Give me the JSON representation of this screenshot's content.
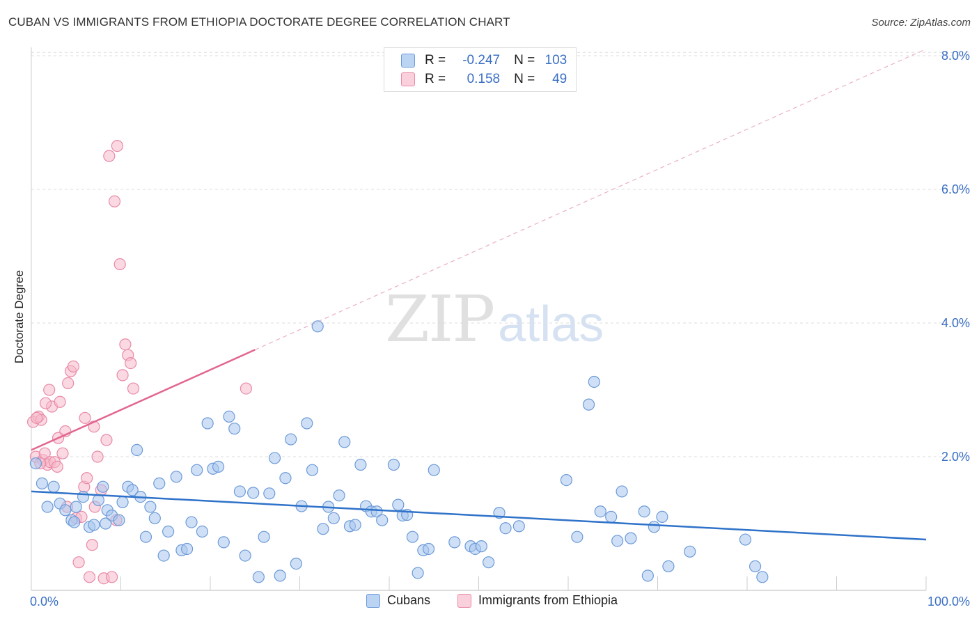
{
  "header": {
    "title": "CUBAN VS IMMIGRANTS FROM ETHIOPIA DOCTORATE DEGREE CORRELATION CHART",
    "source": "Source: ZipAtlas.com"
  },
  "watermark": {
    "part1": "ZIP",
    "part2": "atlas"
  },
  "legend_top": {
    "rows": [
      {
        "r_label": "R =",
        "r_value": "-0.247",
        "n_label": "N =",
        "n_value": "103"
      },
      {
        "r_label": "R =",
        "r_value": "0.158",
        "n_label": "N =",
        "n_value": "49"
      }
    ]
  },
  "legend_bottom": {
    "items": [
      "Cubans",
      "Immigrants from Ethiopia"
    ]
  },
  "colors": {
    "blue_fill": "#a8c6ee",
    "blue_stroke": "#6c9ad8",
    "blue_line": "#2f72c9",
    "pink_fill": "#f6b9cb",
    "pink_stroke": "#e98aa8",
    "pink_line": "#e2668f",
    "axis_label": "#3a6fc4",
    "grid": "#dddddd"
  },
  "chart_data": {
    "type": "scatter",
    "title": "CUBAN VS IMMIGRANTS FROM ETHIOPIA DOCTORATE DEGREE CORRELATION CHART",
    "xlabel": "",
    "ylabel": "Doctorate Degree",
    "xlim": [
      0,
      100
    ],
    "ylim": [
      0,
      8.0
    ],
    "x_tick_labels": [
      "0.0%",
      "100.0%"
    ],
    "y_ticks": [
      2.0,
      4.0,
      6.0,
      8.0
    ],
    "y_tick_labels": [
      "2.0%",
      "4.0%",
      "6.0%",
      "8.0%"
    ],
    "grid": "horizontal dashed",
    "legend_placement": "bottom-center",
    "series": [
      {
        "name": "Cubans",
        "color": "#a8c6ee",
        "trend": {
          "x": [
            0,
            100
          ],
          "y": [
            1.48,
            0.76
          ]
        },
        "points": [
          [
            0.5,
            1.9
          ],
          [
            1.2,
            1.6
          ],
          [
            1.8,
            1.25
          ],
          [
            2.5,
            1.55
          ],
          [
            3.2,
            1.3
          ],
          [
            3.8,
            1.2
          ],
          [
            4.5,
            1.05
          ],
          [
            5.0,
            1.25
          ],
          [
            5.8,
            1.4
          ],
          [
            6.5,
            0.95
          ],
          [
            7.0,
            0.98
          ],
          [
            7.5,
            1.35
          ],
          [
            8.0,
            1.55
          ],
          [
            8.5,
            1.2
          ],
          [
            9.0,
            1.12
          ],
          [
            9.8,
            1.05
          ],
          [
            10.2,
            1.32
          ],
          [
            10.8,
            1.55
          ],
          [
            11.3,
            1.5
          ],
          [
            11.8,
            2.1
          ],
          [
            12.2,
            1.4
          ],
          [
            12.8,
            0.8
          ],
          [
            13.3,
            1.25
          ],
          [
            13.8,
            1.08
          ],
          [
            14.3,
            1.6
          ],
          [
            14.8,
            0.52
          ],
          [
            15.3,
            0.88
          ],
          [
            16.2,
            1.7
          ],
          [
            16.8,
            0.6
          ],
          [
            17.4,
            0.62
          ],
          [
            17.9,
            1.02
          ],
          [
            18.5,
            1.8
          ],
          [
            19.1,
            0.88
          ],
          [
            19.7,
            2.5
          ],
          [
            20.3,
            1.82
          ],
          [
            20.9,
            1.85
          ],
          [
            21.5,
            0.72
          ],
          [
            22.1,
            2.6
          ],
          [
            22.7,
            2.42
          ],
          [
            23.3,
            1.48
          ],
          [
            23.9,
            0.52
          ],
          [
            24.8,
            1.46
          ],
          [
            25.4,
            0.2
          ],
          [
            26.0,
            0.8
          ],
          [
            26.6,
            1.45
          ],
          [
            27.2,
            1.98
          ],
          [
            27.8,
            0.22
          ],
          [
            28.4,
            1.68
          ],
          [
            29.0,
            2.26
          ],
          [
            29.6,
            0.4
          ],
          [
            30.2,
            1.26
          ],
          [
            30.8,
            2.5
          ],
          [
            31.4,
            1.8
          ],
          [
            32.0,
            3.95
          ],
          [
            32.6,
            0.92
          ],
          [
            33.2,
            1.25
          ],
          [
            33.8,
            1.08
          ],
          [
            34.4,
            1.42
          ],
          [
            35.0,
            2.22
          ],
          [
            35.6,
            0.96
          ],
          [
            36.2,
            0.98
          ],
          [
            36.8,
            1.88
          ],
          [
            37.4,
            1.26
          ],
          [
            38.0,
            1.18
          ],
          [
            38.6,
            1.18
          ],
          [
            39.2,
            1.05
          ],
          [
            40.5,
            1.88
          ],
          [
            41.0,
            1.28
          ],
          [
            41.5,
            1.12
          ],
          [
            42.0,
            1.13
          ],
          [
            42.6,
            0.8
          ],
          [
            43.2,
            0.26
          ],
          [
            43.8,
            0.6
          ],
          [
            44.4,
            0.62
          ],
          [
            45.0,
            1.8
          ],
          [
            47.3,
            0.72
          ],
          [
            49.1,
            0.66
          ],
          [
            49.6,
            0.62
          ],
          [
            50.3,
            0.66
          ],
          [
            51.1,
            0.42
          ],
          [
            52.3,
            1.16
          ],
          [
            53.0,
            0.93
          ],
          [
            54.5,
            0.96
          ],
          [
            59.8,
            1.65
          ],
          [
            61.0,
            0.8
          ],
          [
            62.3,
            2.78
          ],
          [
            62.9,
            3.12
          ],
          [
            63.6,
            1.18
          ],
          [
            64.8,
            1.1
          ],
          [
            65.5,
            0.74
          ],
          [
            66.0,
            1.48
          ],
          [
            67.0,
            0.78
          ],
          [
            68.5,
            1.18
          ],
          [
            68.9,
            0.22
          ],
          [
            69.6,
            0.95
          ],
          [
            70.5,
            1.1
          ],
          [
            71.2,
            0.36
          ],
          [
            73.6,
            0.58
          ],
          [
            79.8,
            0.76
          ],
          [
            80.9,
            0.36
          ],
          [
            81.7,
            0.2
          ],
          [
            4.8,
            1.02
          ],
          [
            8.3,
            1.0
          ]
        ]
      },
      {
        "name": "Immigrants from Ethiopia",
        "color": "#f6b9cb",
        "trend": {
          "x": [
            0,
            25
          ],
          "y": [
            2.1,
            3.6
          ]
        },
        "trend_extension": {
          "x": [
            25,
            100
          ],
          "y": [
            3.6,
            8.1
          ]
        },
        "points": [
          [
            0.2,
            2.52
          ],
          [
            0.5,
            2.0
          ],
          [
            0.8,
            2.6
          ],
          [
            1.1,
            2.55
          ],
          [
            1.3,
            1.95
          ],
          [
            1.5,
            2.05
          ],
          [
            1.8,
            1.88
          ],
          [
            2.1,
            1.92
          ],
          [
            2.3,
            2.75
          ],
          [
            2.6,
            1.92
          ],
          [
            2.9,
            1.85
          ],
          [
            3.2,
            2.82
          ],
          [
            3.5,
            2.05
          ],
          [
            3.8,
            2.38
          ],
          [
            4.1,
            3.1
          ],
          [
            4.4,
            3.28
          ],
          [
            4.7,
            3.35
          ],
          [
            5.0,
            1.08
          ],
          [
            5.3,
            0.42
          ],
          [
            5.6,
            1.1
          ],
          [
            5.9,
            1.55
          ],
          [
            6.2,
            1.68
          ],
          [
            6.5,
            0.2
          ],
          [
            6.8,
            0.68
          ],
          [
            7.1,
            1.25
          ],
          [
            7.4,
            2.0
          ],
          [
            7.8,
            1.5
          ],
          [
            8.1,
            0.18
          ],
          [
            8.4,
            2.25
          ],
          [
            8.7,
            6.5
          ],
          [
            9.0,
            0.2
          ],
          [
            9.3,
            5.82
          ],
          [
            9.6,
            6.65
          ],
          [
            9.9,
            4.88
          ],
          [
            10.2,
            3.22
          ],
          [
            10.5,
            3.68
          ],
          [
            10.8,
            3.52
          ],
          [
            11.1,
            3.4
          ],
          [
            11.4,
            3.02
          ],
          [
            1.6,
            2.8
          ],
          [
            2.0,
            3.0
          ],
          [
            3.0,
            2.28
          ],
          [
            4.0,
            1.25
          ],
          [
            0.6,
            2.58
          ],
          [
            1.0,
            1.9
          ],
          [
            6.0,
            2.58
          ],
          [
            7.0,
            2.45
          ],
          [
            9.5,
            1.05
          ],
          [
            24.0,
            3.02
          ]
        ]
      }
    ]
  }
}
